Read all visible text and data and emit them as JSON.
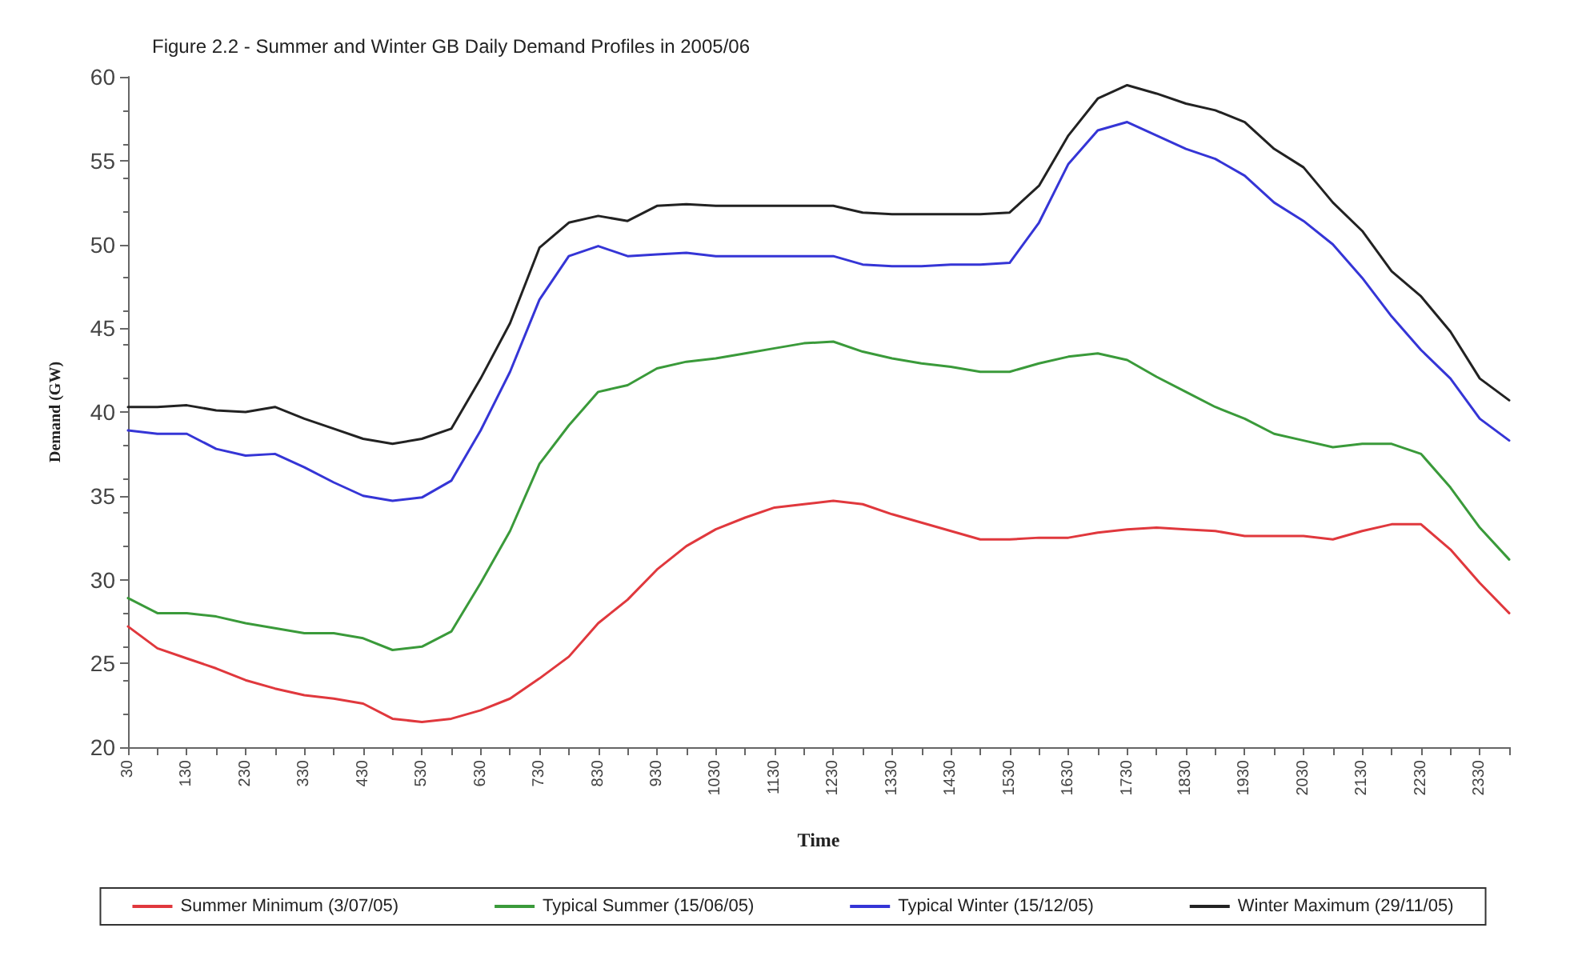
{
  "chart_data": {
    "type": "line",
    "title": "Figure 2.2 - Summer and Winter GB Daily Demand Profiles in 2005/06",
    "xlabel": "Time",
    "ylabel": "Demand (GW)",
    "categories": [
      "30",
      null,
      "130",
      null,
      "230",
      null,
      "330",
      null,
      "430",
      null,
      "530",
      null,
      "630",
      null,
      "730",
      null,
      "830",
      null,
      "930",
      null,
      "1030",
      null,
      "1130",
      null,
      "1230",
      null,
      "1330",
      null,
      "1430",
      null,
      "1530",
      null,
      "1630",
      null,
      "1730",
      null,
      "1830",
      null,
      "1930",
      null,
      "2030",
      null,
      "2130",
      null,
      "2230",
      null,
      "2330",
      null
    ],
    "series": [
      {
        "name": "Summer Minimum (3/07/05)",
        "color": "#e0383d",
        "values": [
          27.2,
          25.9,
          25.3,
          24.7,
          24.0,
          23.5,
          23.1,
          22.9,
          22.6,
          21.7,
          21.5,
          21.7,
          22.2,
          22.9,
          24.1,
          25.4,
          27.4,
          28.8,
          30.6,
          32.0,
          33.0,
          33.7,
          34.3,
          34.5,
          34.7,
          34.5,
          33.9,
          33.4,
          32.9,
          32.4,
          32.4,
          32.5,
          32.5,
          32.8,
          33.0,
          33.1,
          33.0,
          32.9,
          32.6,
          32.6,
          32.6,
          32.4,
          32.9,
          33.3,
          33.3,
          31.8,
          29.8,
          28.0
        ]
      },
      {
        "name": "Typical Summer (15/06/05)",
        "color": "#3a9a3a",
        "values": [
          28.9,
          28.0,
          28.0,
          27.8,
          27.4,
          27.1,
          26.8,
          26.8,
          26.5,
          25.8,
          26.0,
          26.9,
          29.8,
          32.9,
          36.9,
          39.2,
          41.2,
          41.6,
          42.6,
          43.0,
          43.2,
          43.5,
          43.8,
          44.1,
          44.2,
          43.6,
          43.2,
          42.9,
          42.7,
          42.4,
          42.4,
          42.9,
          43.3,
          43.5,
          43.1,
          42.1,
          41.2,
          40.3,
          39.6,
          38.7,
          38.3,
          37.9,
          38.1,
          38.1,
          37.5,
          35.5,
          33.1,
          31.2
        ]
      },
      {
        "name": "Typical Winter (15/12/05)",
        "color": "#3535d6",
        "values": [
          38.9,
          38.7,
          38.7,
          37.8,
          37.4,
          37.5,
          36.7,
          35.8,
          35.0,
          34.7,
          34.9,
          35.9,
          38.9,
          42.4,
          46.7,
          49.3,
          49.9,
          49.3,
          49.4,
          49.5,
          49.3,
          49.3,
          49.3,
          49.3,
          49.3,
          48.8,
          48.7,
          48.7,
          48.8,
          48.8,
          48.9,
          51.3,
          54.8,
          56.8,
          57.3,
          56.5,
          55.7,
          55.1,
          54.1,
          52.5,
          51.4,
          50.0,
          48.0,
          45.7,
          43.7,
          42.0,
          39.6,
          38.3
        ]
      },
      {
        "name": "Winter Maximum (29/11/05)",
        "color": "#222222",
        "values": [
          40.3,
          40.3,
          40.4,
          40.1,
          40.0,
          40.3,
          39.6,
          39.0,
          38.4,
          38.1,
          38.4,
          39.0,
          42.0,
          45.3,
          49.8,
          51.3,
          51.7,
          51.4,
          52.3,
          52.4,
          52.3,
          52.3,
          52.3,
          52.3,
          52.3,
          51.9,
          51.8,
          51.8,
          51.8,
          51.8,
          51.9,
          53.5,
          56.5,
          58.7,
          59.5,
          59.0,
          58.4,
          58.0,
          57.3,
          55.7,
          54.6,
          52.5,
          50.8,
          48.4,
          46.9,
          44.8,
          42.0,
          40.7
        ]
      }
    ],
    "ylim": [
      20,
      60
    ],
    "yticks": [
      20,
      25,
      30,
      35,
      40,
      45,
      50,
      55,
      60
    ],
    "grid": false,
    "legend": "bottom",
    "marker": "none",
    "line_style": "solid"
  }
}
